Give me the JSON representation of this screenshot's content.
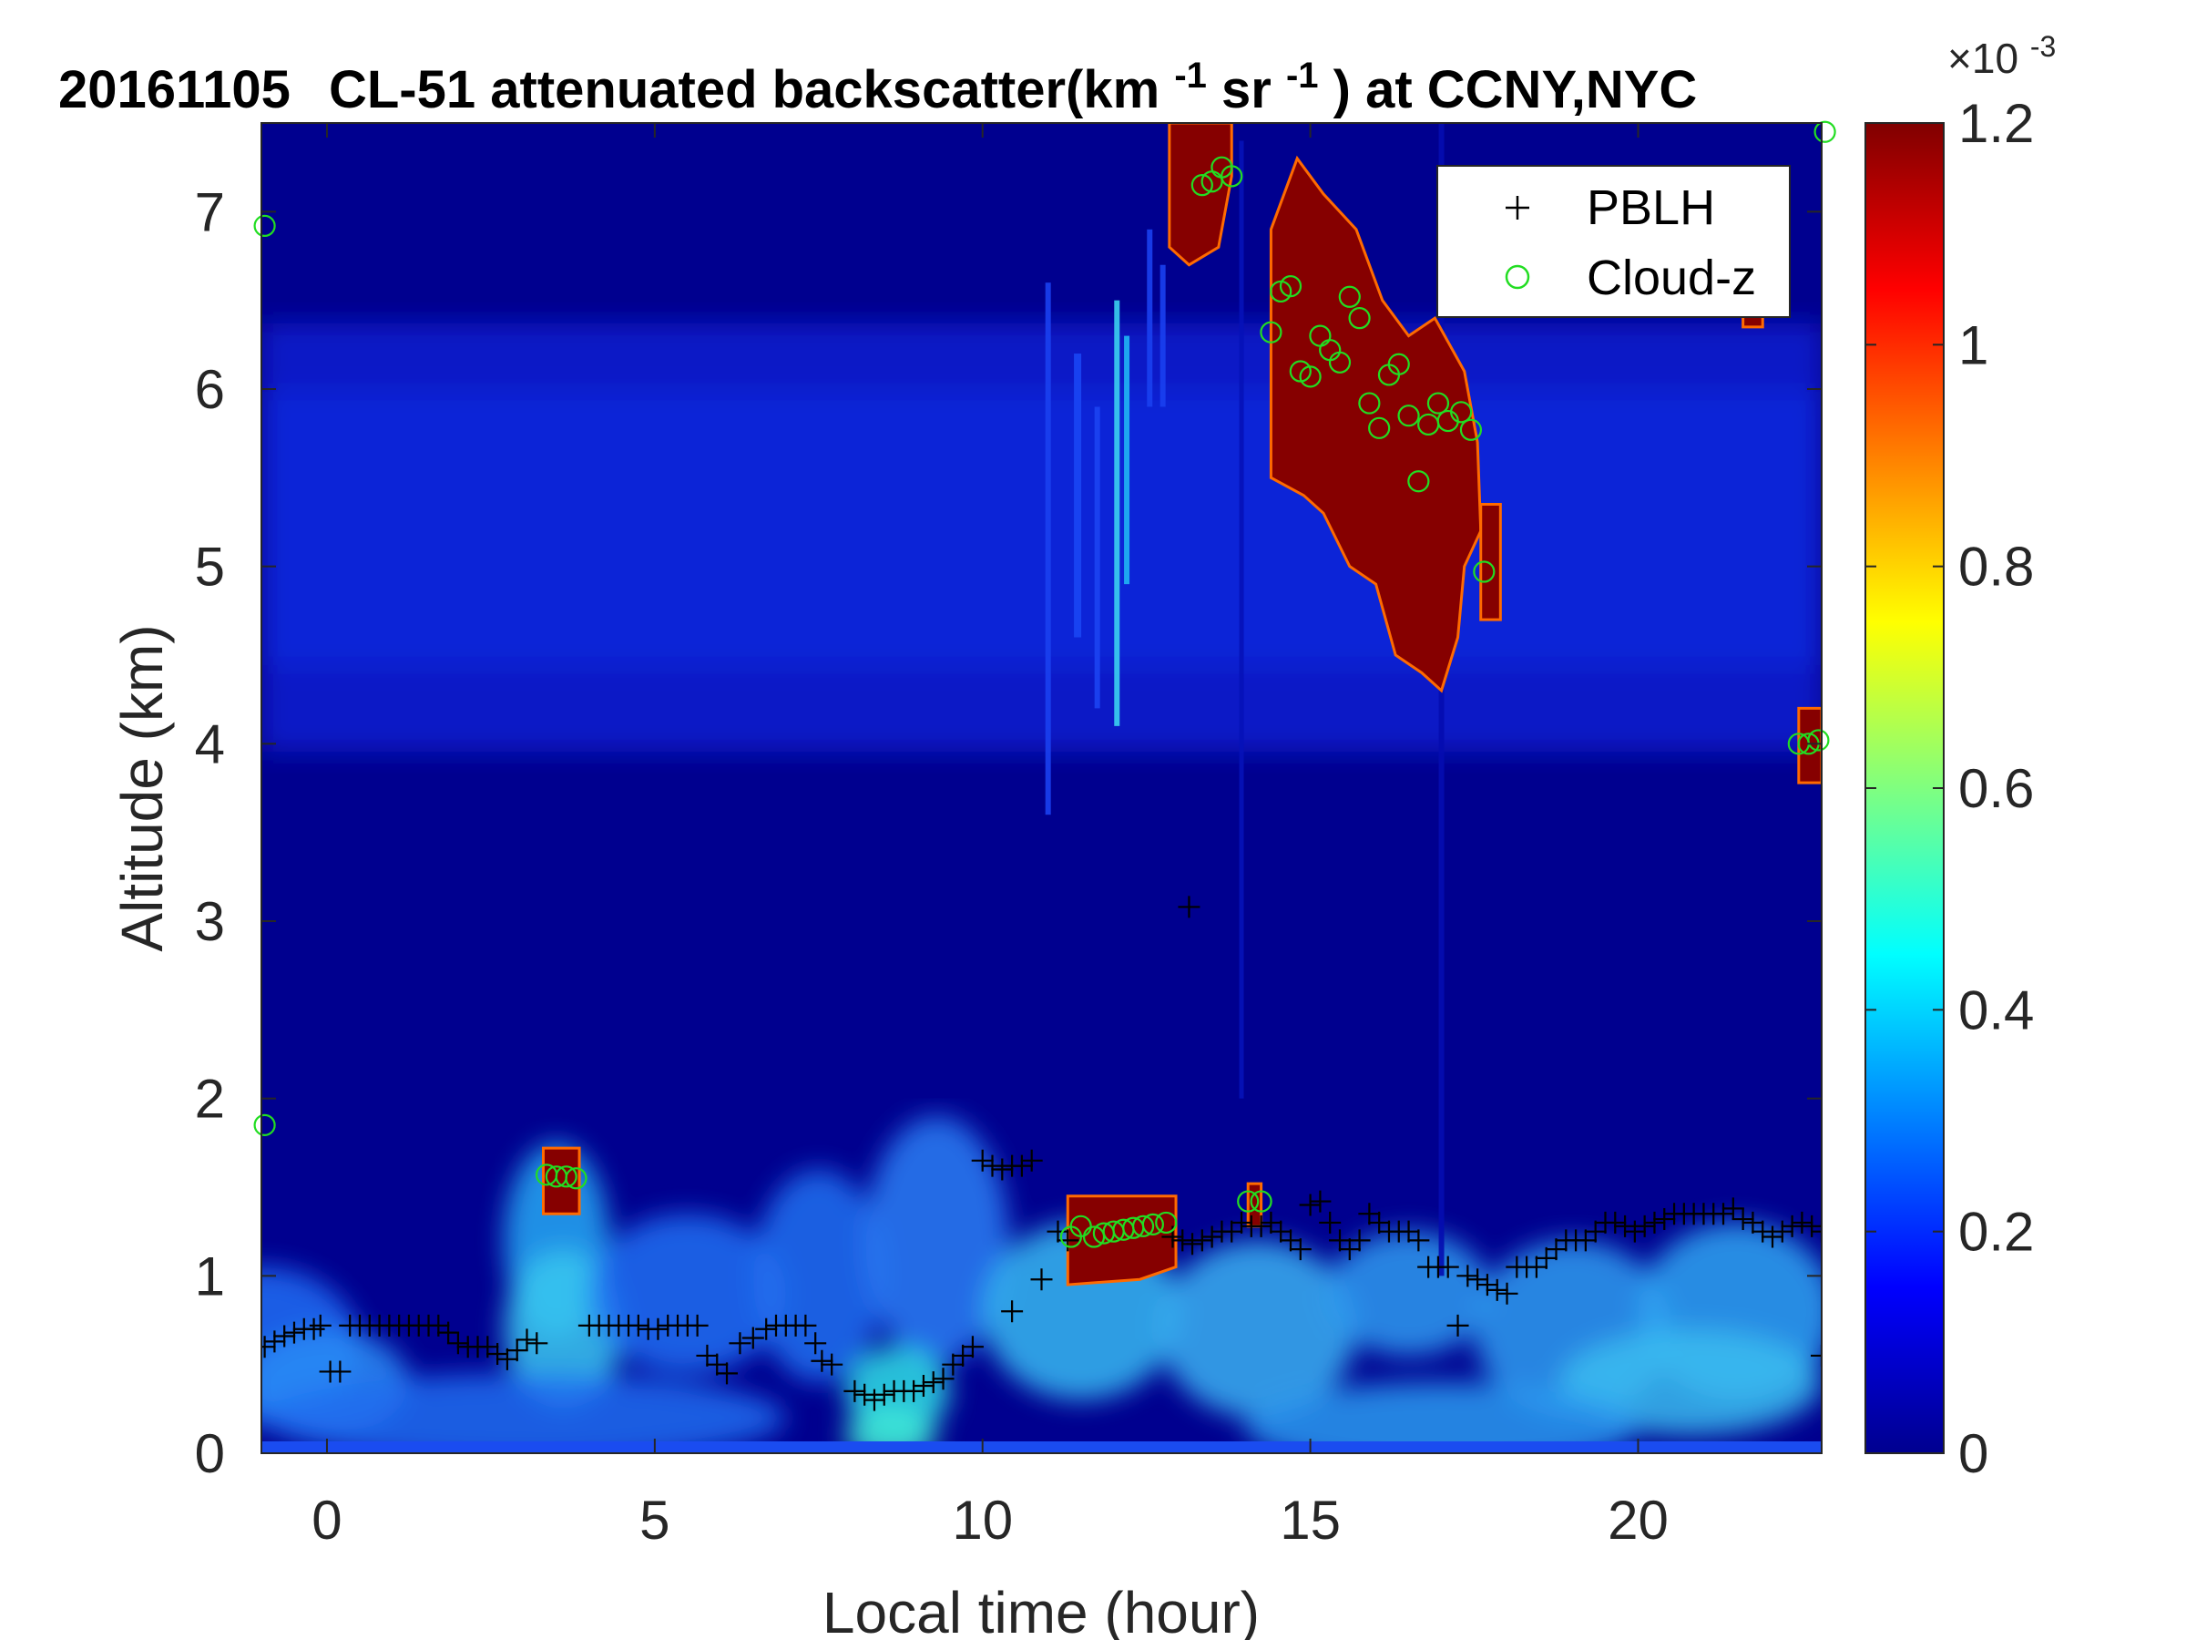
{
  "chart_data": {
    "type": "heatmap",
    "title": {
      "date": "20161105",
      "main": "CL-51 attenuated backscatter(km",
      "exp1": "-1",
      "sr": "sr",
      "exp2": "-1",
      "tail": ") at CCNY,NYC"
    },
    "xlabel": "Local time (hour)",
    "ylabel": "Altitude (km)",
    "xlim": [
      -1,
      22.8
    ],
    "ylim": [
      0,
      7.5
    ],
    "xticks": [
      0,
      5,
      10,
      15,
      20
    ],
    "yticks": [
      0,
      1,
      2,
      3,
      4,
      5,
      6,
      7
    ],
    "colorbar": {
      "colormap": "jet",
      "range": [
        0,
        1.2
      ],
      "ticks": [
        "0",
        "0.2",
        "0.4",
        "0.6",
        "0.8",
        "1",
        "1.2"
      ],
      "tick_values": [
        0,
        0.2,
        0.4,
        0.6,
        0.8,
        1.0,
        1.2
      ],
      "exponent_base": "×10",
      "exponent": "-3"
    },
    "legend": {
      "placement": "top-right",
      "entries": [
        {
          "label": "PBLH",
          "marker": "+",
          "color": "#000000"
        },
        {
          "label": "Cloud-z",
          "marker": "o",
          "color": "#22dd22"
        }
      ]
    },
    "series": [
      {
        "name": "PBLH",
        "points": [
          [
            -0.95,
            0.6
          ],
          [
            -0.8,
            0.63
          ],
          [
            -0.65,
            0.66
          ],
          [
            -0.5,
            0.68
          ],
          [
            -0.35,
            0.7
          ],
          [
            -0.2,
            0.7
          ],
          [
            -0.1,
            0.72
          ],
          [
            0.05,
            0.46
          ],
          [
            0.2,
            0.46
          ],
          [
            0.35,
            0.72
          ],
          [
            0.5,
            0.72
          ],
          [
            0.65,
            0.72
          ],
          [
            0.8,
            0.72
          ],
          [
            0.95,
            0.72
          ],
          [
            1.1,
            0.72
          ],
          [
            1.25,
            0.72
          ],
          [
            1.4,
            0.72
          ],
          [
            1.55,
            0.72
          ],
          [
            1.7,
            0.72
          ],
          [
            1.85,
            0.68
          ],
          [
            2.0,
            0.62
          ],
          [
            2.15,
            0.6
          ],
          [
            2.3,
            0.6
          ],
          [
            2.45,
            0.6
          ],
          [
            2.6,
            0.56
          ],
          [
            2.75,
            0.53
          ],
          [
            2.9,
            0.58
          ],
          [
            3.05,
            0.64
          ],
          [
            3.2,
            0.62
          ],
          [
            4.0,
            0.72
          ],
          [
            4.15,
            0.72
          ],
          [
            4.3,
            0.72
          ],
          [
            4.45,
            0.72
          ],
          [
            4.6,
            0.72
          ],
          [
            4.75,
            0.72
          ],
          [
            4.9,
            0.7
          ],
          [
            5.05,
            0.7
          ],
          [
            5.2,
            0.72
          ],
          [
            5.35,
            0.72
          ],
          [
            5.5,
            0.72
          ],
          [
            5.65,
            0.72
          ],
          [
            5.8,
            0.55
          ],
          [
            5.95,
            0.5
          ],
          [
            6.1,
            0.45
          ],
          [
            6.3,
            0.62
          ],
          [
            6.5,
            0.65
          ],
          [
            6.7,
            0.7
          ],
          [
            6.85,
            0.72
          ],
          [
            7.0,
            0.72
          ],
          [
            7.15,
            0.72
          ],
          [
            7.3,
            0.72
          ],
          [
            7.45,
            0.62
          ],
          [
            7.55,
            0.52
          ],
          [
            7.7,
            0.5
          ],
          [
            8.05,
            0.35
          ],
          [
            8.2,
            0.33
          ],
          [
            8.35,
            0.3
          ],
          [
            8.5,
            0.33
          ],
          [
            8.65,
            0.35
          ],
          [
            8.8,
            0.35
          ],
          [
            8.95,
            0.35
          ],
          [
            9.1,
            0.38
          ],
          [
            9.25,
            0.4
          ],
          [
            9.4,
            0.42
          ],
          [
            9.55,
            0.5
          ],
          [
            9.7,
            0.55
          ],
          [
            9.85,
            0.6
          ],
          [
            10.0,
            1.65
          ],
          [
            10.15,
            1.62
          ],
          [
            10.3,
            1.6
          ],
          [
            10.45,
            1.62
          ],
          [
            10.6,
            1.62
          ],
          [
            10.75,
            1.65
          ],
          [
            10.45,
            0.8
          ],
          [
            10.9,
            0.98
          ],
          [
            11.15,
            1.25
          ],
          [
            11.3,
            1.2
          ],
          [
            12.9,
            1.22
          ],
          [
            13.05,
            1.2
          ],
          [
            13.2,
            1.18
          ],
          [
            13.35,
            1.2
          ],
          [
            13.5,
            1.22
          ],
          [
            13.65,
            1.25
          ],
          [
            13.8,
            1.25
          ],
          [
            13.95,
            1.3
          ],
          [
            14.1,
            1.28
          ],
          [
            14.25,
            1.28
          ],
          [
            14.4,
            1.3
          ],
          [
            14.55,
            1.25
          ],
          [
            14.7,
            1.2
          ],
          [
            14.85,
            1.15
          ],
          [
            15.0,
            1.4
          ],
          [
            15.15,
            1.42
          ],
          [
            15.3,
            1.3
          ],
          [
            15.45,
            1.2
          ],
          [
            15.6,
            1.15
          ],
          [
            15.75,
            1.2
          ],
          [
            15.9,
            1.35
          ],
          [
            16.05,
            1.3
          ],
          [
            16.2,
            1.25
          ],
          [
            16.35,
            1.25
          ],
          [
            16.5,
            1.25
          ],
          [
            16.65,
            1.2
          ],
          [
            16.8,
            1.05
          ],
          [
            16.95,
            1.05
          ],
          [
            17.1,
            1.05
          ],
          [
            17.25,
            0.72
          ],
          [
            17.4,
            1.0
          ],
          [
            17.55,
            0.98
          ],
          [
            17.7,
            0.95
          ],
          [
            17.85,
            0.92
          ],
          [
            18.0,
            0.9
          ],
          [
            18.15,
            1.05
          ],
          [
            18.3,
            1.05
          ],
          [
            18.45,
            1.05
          ],
          [
            18.6,
            1.1
          ],
          [
            18.75,
            1.15
          ],
          [
            18.9,
            1.2
          ],
          [
            19.05,
            1.2
          ],
          [
            19.2,
            1.2
          ],
          [
            19.35,
            1.25
          ],
          [
            19.5,
            1.3
          ],
          [
            19.65,
            1.3
          ],
          [
            19.8,
            1.28
          ],
          [
            19.95,
            1.25
          ],
          [
            20.1,
            1.28
          ],
          [
            20.25,
            1.3
          ],
          [
            20.4,
            1.32
          ],
          [
            20.55,
            1.35
          ],
          [
            20.7,
            1.35
          ],
          [
            20.85,
            1.35
          ],
          [
            21.0,
            1.35
          ],
          [
            21.15,
            1.35
          ],
          [
            21.3,
            1.35
          ],
          [
            21.45,
            1.38
          ],
          [
            21.6,
            1.32
          ],
          [
            21.75,
            1.3
          ],
          [
            21.9,
            1.25
          ],
          [
            22.05,
            1.22
          ],
          [
            22.2,
            1.25
          ],
          [
            22.35,
            1.28
          ],
          [
            22.5,
            1.3
          ],
          [
            22.65,
            1.28
          ],
          [
            22.8,
            1.25
          ],
          [
            22.8,
            0.55
          ],
          [
            13.15,
            3.08
          ]
        ]
      },
      {
        "name": "Cloud-z",
        "points": [
          [
            -0.95,
            6.92
          ],
          [
            -0.95,
            1.85
          ],
          [
            3.35,
            1.57
          ],
          [
            3.5,
            1.56
          ],
          [
            3.65,
            1.56
          ],
          [
            3.8,
            1.55
          ],
          [
            11.35,
            1.22
          ],
          [
            11.5,
            1.28
          ],
          [
            11.7,
            1.22
          ],
          [
            11.85,
            1.24
          ],
          [
            12.0,
            1.25
          ],
          [
            12.15,
            1.26
          ],
          [
            12.3,
            1.27
          ],
          [
            12.45,
            1.28
          ],
          [
            12.6,
            1.29
          ],
          [
            12.8,
            1.3
          ],
          [
            13.35,
            7.15
          ],
          [
            13.5,
            7.17
          ],
          [
            13.65,
            7.25
          ],
          [
            13.8,
            7.2
          ],
          [
            14.05,
            1.42
          ],
          [
            14.25,
            1.42
          ],
          [
            14.4,
            6.32
          ],
          [
            14.55,
            6.55
          ],
          [
            14.7,
            6.58
          ],
          [
            14.85,
            6.1
          ],
          [
            15.0,
            6.07
          ],
          [
            15.15,
            6.3
          ],
          [
            15.3,
            6.22
          ],
          [
            15.45,
            6.15
          ],
          [
            15.6,
            6.52
          ],
          [
            15.75,
            6.4
          ],
          [
            15.9,
            5.92
          ],
          [
            16.05,
            5.78
          ],
          [
            16.2,
            6.08
          ],
          [
            16.35,
            6.14
          ],
          [
            16.5,
            5.85
          ],
          [
            16.65,
            5.48
          ],
          [
            16.8,
            5.8
          ],
          [
            16.95,
            5.92
          ],
          [
            17.1,
            5.82
          ],
          [
            17.3,
            5.87
          ],
          [
            17.45,
            5.77
          ],
          [
            17.65,
            4.97
          ],
          [
            22.45,
            4.0
          ],
          [
            22.6,
            4.0
          ],
          [
            22.75,
            4.02
          ],
          [
            22.85,
            7.45
          ]
        ]
      }
    ]
  }
}
